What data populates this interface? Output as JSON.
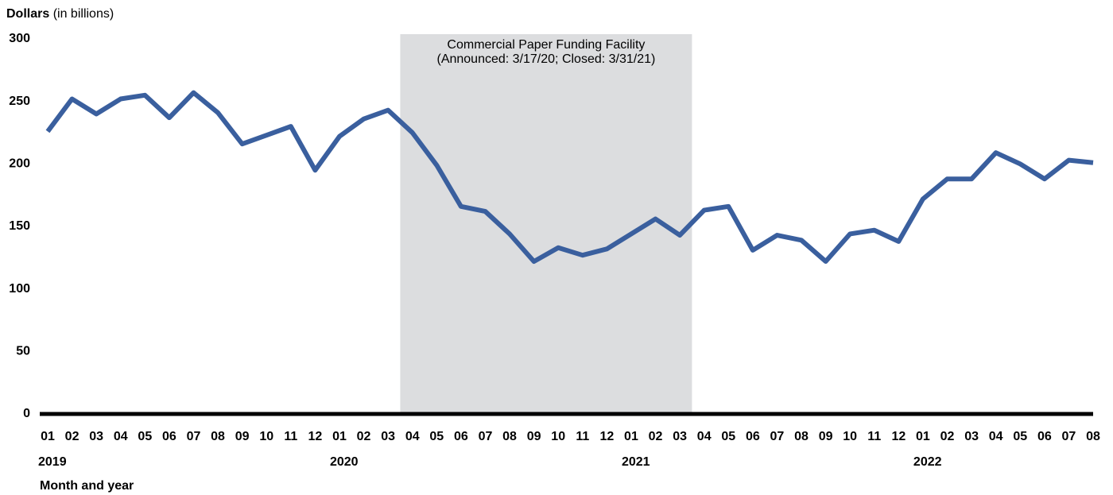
{
  "chart_data": {
    "type": "line",
    "y_label": "Dollars",
    "y_label_unit": "(in billions)",
    "x_label": "Month and year",
    "categories": [
      "01",
      "02",
      "03",
      "04",
      "05",
      "06",
      "07",
      "08",
      "09",
      "10",
      "11",
      "12",
      "01",
      "02",
      "03",
      "04",
      "05",
      "06",
      "07",
      "08",
      "09",
      "10",
      "11",
      "12",
      "01",
      "02",
      "03",
      "04",
      "05",
      "06",
      "07",
      "08",
      "09",
      "10",
      "11",
      "12",
      "01",
      "02",
      "03",
      "04",
      "05",
      "06",
      "07",
      "08"
    ],
    "year_labels": [
      "2019",
      "2020",
      "2021",
      "2022"
    ],
    "series": [
      {
        "name": "Commercial paper",
        "color": "#3a5f9e",
        "values": [
          226,
          252,
          240,
          252,
          255,
          237,
          257,
          241,
          216,
          223,
          230,
          195,
          222,
          236,
          243,
          225,
          199,
          166,
          162,
          144,
          122,
          133,
          127,
          132,
          144,
          156,
          143,
          163,
          166,
          131,
          143,
          139,
          122,
          144,
          147,
          138,
          172,
          188,
          188,
          209,
          200,
          188,
          203,
          201
        ]
      }
    ],
    "annotation": {
      "lines": [
        "Commercial Paper Funding Facility",
        "(Announced: 3/17/20; Closed: 3/31/21)"
      ],
      "span": [
        14.5,
        26.5
      ],
      "color": "#dcdddf"
    },
    "ylim": [
      0,
      300
    ],
    "yticks": [
      0,
      50,
      100,
      150,
      200,
      250,
      300
    ],
    "grid": false
  }
}
